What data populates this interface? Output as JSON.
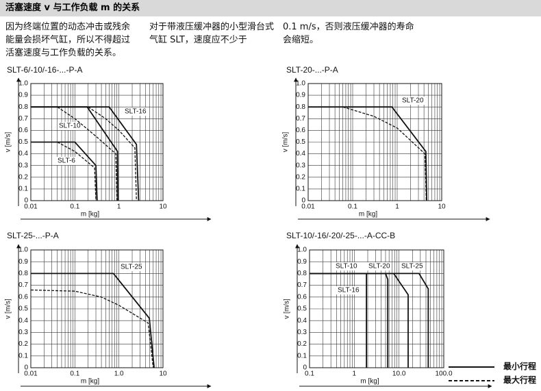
{
  "header": {
    "title": "活塞速度 v 与工作负载 m 的关系",
    "columns": [
      "因为终端位置的动态冲击或残余能量会损坏气缸，所以不得超过活塞速度与工作负载的关系。",
      "对于带液压缓冲器的小型滑台式气缸 SLT，速度应不少于",
      "0.1 m/s，否则液压缓冲器的寿命会缩短。"
    ]
  },
  "chart_data": [
    {
      "type": "line",
      "title": "SLT-6/-10/-16-...-P-A",
      "xlabel": "m [kg]",
      "ylabel": "v [m/s]",
      "xlog": true,
      "grid": true,
      "xlim": [
        0.01,
        10
      ],
      "xticks": [
        0.01,
        0.1,
        1,
        10
      ],
      "ylim": [
        0,
        1
      ],
      "yticks": [
        0,
        0.1,
        0.2,
        0.3,
        0.4,
        0.5,
        0.6,
        0.7,
        0.8,
        0.9,
        {
          "value": 1,
          "label": "1.0"
        }
      ],
      "series": [
        {
          "label": "SLT-16",
          "dash": false,
          "x": [
            0.01,
            0.6,
            2.5,
            2.8
          ],
          "values": [
            0.8,
            0.8,
            0.48,
            0
          ]
        },
        {
          "dash": true,
          "x": [
            0.2,
            0.5,
            1.0,
            2.3,
            2.5
          ],
          "values": [
            0.8,
            0.7,
            0.6,
            0.45,
            0
          ]
        },
        {
          "label": "SLT-10",
          "dash": false,
          "x": [
            0.01,
            0.19,
            0.93,
            0.95
          ],
          "values": [
            0.8,
            0.8,
            0.42,
            0
          ]
        },
        {
          "dash": true,
          "x": [
            0.04,
            0.1,
            0.3,
            0.85,
            0.9
          ],
          "values": [
            0.8,
            0.7,
            0.55,
            0.4,
            0
          ]
        },
        {
          "label": "SLT-6",
          "dash": false,
          "x": [
            0.01,
            0.1,
            0.3,
            0.32
          ],
          "values": [
            0.5,
            0.5,
            0.3,
            0
          ]
        },
        {
          "dash": true,
          "x": [
            0.04,
            0.1,
            0.28,
            0.3
          ],
          "values": [
            0.5,
            0.42,
            0.28,
            0
          ]
        }
      ]
    },
    {
      "type": "line",
      "title": "SLT-20-...-P-A",
      "xlabel": "m [kg]",
      "ylabel": "v [m/s]",
      "xlog": true,
      "grid": true,
      "xlim": [
        0.01,
        10
      ],
      "xticks": [
        0.01,
        0.1,
        1,
        10
      ],
      "ylim": [
        0,
        1
      ],
      "yticks": [
        0,
        0.1,
        0.2,
        0.3,
        0.4,
        0.5,
        0.6,
        0.7,
        0.8,
        0.9,
        {
          "value": 1,
          "label": "1.0"
        }
      ],
      "series": [
        {
          "label": "SLT-20",
          "dash": false,
          "x": [
            0.01,
            0.76,
            4.4,
            4.6
          ],
          "values": [
            0.8,
            0.8,
            0.42,
            0
          ]
        },
        {
          "dash": true,
          "x": [
            0.06,
            0.3,
            1.0,
            4.2,
            4.5
          ],
          "values": [
            0.8,
            0.72,
            0.62,
            0.4,
            0
          ]
        }
      ]
    },
    {
      "type": "line",
      "title": "SLT-25-...-P-A",
      "xlabel": "m [kg]",
      "ylabel": "v [m/s]",
      "xlog": true,
      "grid": true,
      "xlim": [
        0.01,
        10
      ],
      "xticks": [
        0.01,
        0.1,
        {
          "value": 1,
          "label": "1.0"
        },
        10
      ],
      "ylim": [
        0,
        1
      ],
      "yticks": [
        0,
        0.1,
        0.2,
        0.3,
        0.4,
        0.5,
        0.6,
        0.7,
        0.8,
        0.9,
        {
          "value": 1,
          "label": "1.0"
        }
      ],
      "series": [
        {
          "label": "SLT-25",
          "dash": false,
          "x": [
            0.01,
            0.75,
            4.9,
            6.3
          ],
          "values": [
            0.8,
            0.8,
            0.42,
            0
          ]
        },
        {
          "dash": true,
          "x": [
            0.01,
            0.1,
            0.4,
            1.0,
            4.6,
            6.0
          ],
          "values": [
            0.66,
            0.65,
            0.6,
            0.53,
            0.38,
            0
          ]
        }
      ]
    },
    {
      "type": "line",
      "title": "SLT-10/-16/-20/-25-...-A-CC-B",
      "xlabel": "m [kg]",
      "ylabel": "v [m/s]",
      "xlog": true,
      "grid": true,
      "xlim": [
        0.1,
        100
      ],
      "xticks": [
        0.1,
        1,
        {
          "value": 10,
          "label": "10.0"
        },
        {
          "value": 100,
          "label": "100.0"
        }
      ],
      "ylim": [
        0,
        1
      ],
      "yticks": [
        0,
        0.1,
        0.2,
        0.3,
        0.4,
        0.5,
        0.6,
        0.7,
        0.8,
        0.9,
        {
          "value": 1,
          "label": "1.0"
        }
      ],
      "series": [
        {
          "label": "SLT-10",
          "dash": false,
          "x": [
            0.1,
            1.87,
            1.87
          ],
          "values": [
            0.8,
            0.8,
            0
          ]
        },
        {
          "label": "SLT-20",
          "dash": false,
          "x": [
            0.1,
            7.6,
            16,
            16
          ],
          "values": [
            0.8,
            0.8,
            0.62,
            0
          ]
        },
        {
          "label": "SLT-25",
          "dash": false,
          "x": [
            0.1,
            28,
            45,
            45
          ],
          "values": [
            0.8,
            0.8,
            0.67,
            0
          ]
        },
        {
          "label": "SLT-16",
          "dash": false,
          "x": [
            0.1,
            5.0,
            5.6,
            5.6
          ],
          "values": [
            0.8,
            0.8,
            0.75,
            0
          ]
        }
      ]
    }
  ],
  "legend": [
    {
      "label": "最小行程",
      "dash": false
    },
    {
      "label": "最大行程",
      "dash": true
    }
  ]
}
